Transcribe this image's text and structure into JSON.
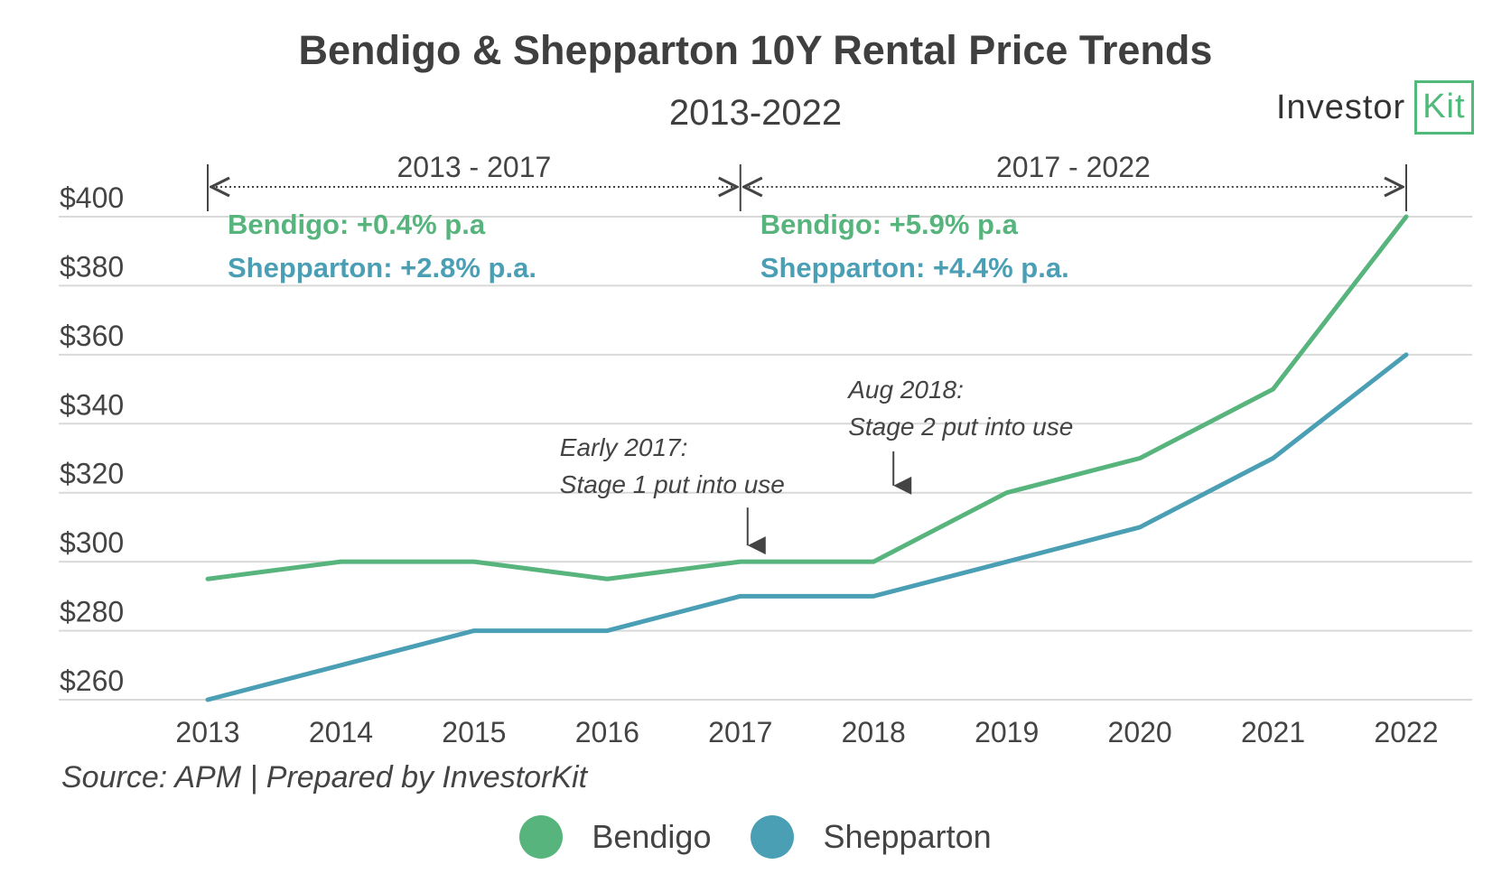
{
  "title": "Bendigo & Shepparton 10Y Rental Price Trends",
  "subtitle": "2013-2022",
  "logo": {
    "main": "Investor",
    "boxed": "Kit"
  },
  "source": "Source:  APM | Prepared by InvestorKit",
  "colors": {
    "bendigo": "#57b47d",
    "shepparton": "#4a9fb5",
    "grid": "#d9d9d9",
    "text": "#444444"
  },
  "periods": [
    {
      "label": "2013 - 2017",
      "from": 2013,
      "to": 2017,
      "lines": [
        "Bendigo: +0.4% p.a",
        "Shepparton: +2.8% p.a."
      ]
    },
    {
      "label": "2017 - 2022",
      "from": 2017,
      "to": 2022,
      "lines": [
        "Bendigo: +5.9% p.a",
        "Shepparton: +4.4% p.a."
      ]
    }
  ],
  "annotations": [
    {
      "x": 2017,
      "y": 300,
      "lines": [
        "Early 2017:",
        "Stage 1 put into use"
      ]
    },
    {
      "x": 2018,
      "y": 321,
      "lines": [
        "Aug 2018:",
        "Stage 2 put into use"
      ]
    }
  ],
  "chart_data": {
    "type": "line",
    "x": [
      2013,
      2014,
      2015,
      2016,
      2017,
      2018,
      2019,
      2020,
      2021,
      2022
    ],
    "series": [
      {
        "name": "Bendigo",
        "color": "#57b47d",
        "values": [
          295,
          300,
          300,
          295,
          300,
          300,
          320,
          330,
          350,
          400
        ]
      },
      {
        "name": "Shepparton",
        "color": "#4a9fb5",
        "values": [
          260,
          270,
          280,
          280,
          290,
          290,
          300,
          310,
          330,
          360
        ]
      }
    ],
    "title": "Bendigo & Shepparton 10Y Rental Price Trends",
    "subtitle": "2013-2022",
    "xlabel": "",
    "ylabel": "",
    "ylim": [
      260,
      400
    ],
    "yticks": [
      260,
      280,
      300,
      320,
      340,
      360,
      380,
      400
    ],
    "ytick_labels": [
      "$260",
      "$280",
      "$300",
      "$320",
      "$340",
      "$360",
      "$380",
      "$400"
    ],
    "grid": true,
    "legend": "bottom"
  }
}
